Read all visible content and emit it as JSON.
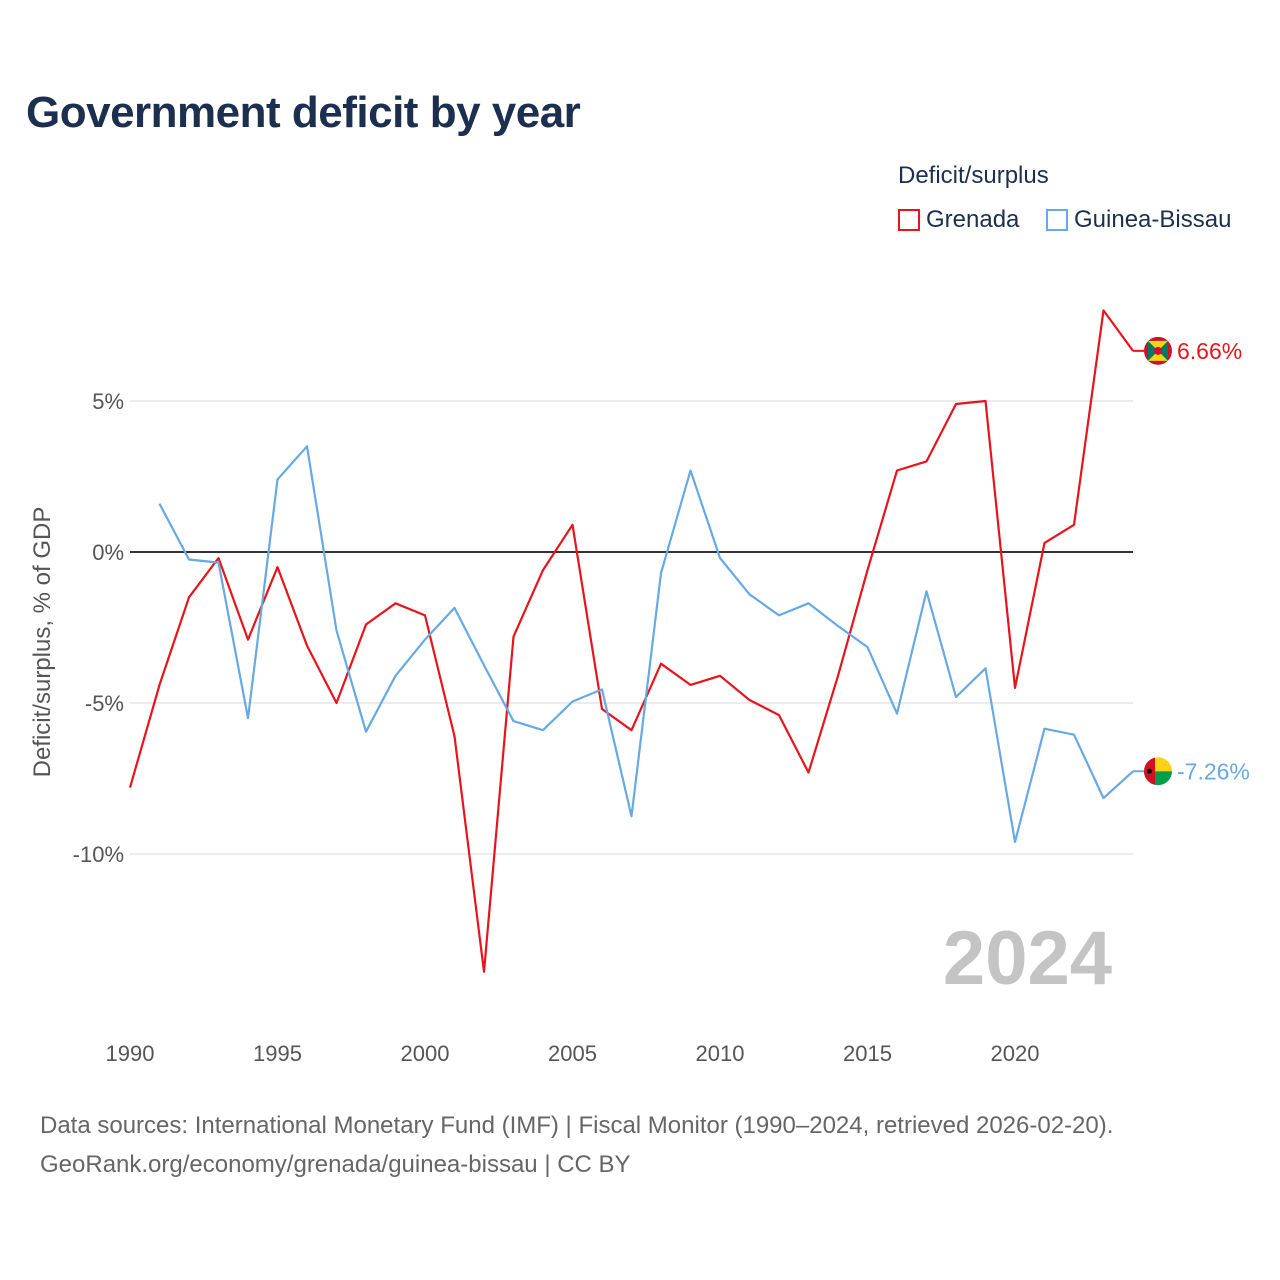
{
  "title": "Government deficit by year",
  "legend": {
    "title": "Deficit/surplus",
    "items": [
      {
        "name": "Grenada",
        "color": "#e8141c"
      },
      {
        "name": "Guinea-Bissau",
        "color": "#67a9e4"
      }
    ]
  },
  "year_watermark": "2024",
  "footer": {
    "line1": "Data sources: International Monetary Fund (IMF) | Fiscal Monitor (1990–2024, retrieved 2026-02-20).",
    "line2": "GeoRank.org/economy/grenada/guinea-bissau | CC BY"
  },
  "end_labels": {
    "grenada": "6.66%",
    "guinea_bissau": "-7.26%"
  },
  "chart_data": {
    "type": "line",
    "title": "Government deficit by year",
    "xlabel": "",
    "ylabel": "Deficit/surplus, % of GDP",
    "xlim": [
      1990,
      2024
    ],
    "ylim": [
      -15.5,
      9
    ],
    "x_ticks": [
      1990,
      1995,
      2000,
      2005,
      2010,
      2015,
      2020
    ],
    "y_ticks": [
      {
        "value": 5,
        "label": "5%"
      },
      {
        "value": 0,
        "label": "0%"
      },
      {
        "value": -5,
        "label": "-5%"
      },
      {
        "value": -10,
        "label": "-10%"
      }
    ],
    "grid": true,
    "legend_position": "top-right",
    "series": [
      {
        "name": "Grenada",
        "color": "#e8141c",
        "x": [
          1990,
          1991,
          1992,
          1993,
          1994,
          1995,
          1996,
          1997,
          1998,
          1999,
          2000,
          2001,
          2002,
          2003,
          2004,
          2005,
          2006,
          2007,
          2008,
          2009,
          2010,
          2011,
          2012,
          2013,
          2014,
          2015,
          2016,
          2017,
          2018,
          2019,
          2020,
          2021,
          2022,
          2023,
          2024
        ],
        "values": [
          -7.8,
          -4.4,
          -1.5,
          -0.2,
          -2.9,
          -0.5,
          -3.1,
          -5.0,
          -2.4,
          -1.7,
          -2.1,
          -6.1,
          -13.9,
          -2.8,
          -0.6,
          0.9,
          -5.2,
          -5.9,
          -3.7,
          -4.4,
          -4.1,
          -4.9,
          -5.4,
          -7.3,
          -4.1,
          -0.6,
          2.7,
          3.0,
          4.9,
          5.0,
          -4.5,
          0.3,
          0.9,
          8.0,
          6.66
        ]
      },
      {
        "name": "Guinea-Bissau",
        "color": "#67a9e4",
        "x": [
          1991,
          1992,
          1993,
          1994,
          1995,
          1996,
          1997,
          1998,
          1999,
          2000,
          2001,
          2002,
          2003,
          2004,
          2005,
          2006,
          2007,
          2008,
          2009,
          2010,
          2011,
          2012,
          2013,
          2014,
          2015,
          2016,
          2017,
          2018,
          2019,
          2020,
          2021,
          2022,
          2023,
          2024
        ],
        "values": [
          1.6,
          -0.25,
          -0.35,
          -5.5,
          2.4,
          3.5,
          -2.6,
          -5.95,
          -4.1,
          -2.9,
          -1.85,
          -3.75,
          -5.6,
          -5.9,
          -4.95,
          -4.55,
          -8.75,
          -0.7,
          2.7,
          -0.2,
          -1.4,
          -2.1,
          -1.7,
          -2.45,
          -3.15,
          -5.35,
          -1.3,
          -4.8,
          -3.85,
          -9.6,
          -5.85,
          -6.05,
          -8.15,
          -7.26
        ]
      }
    ]
  }
}
